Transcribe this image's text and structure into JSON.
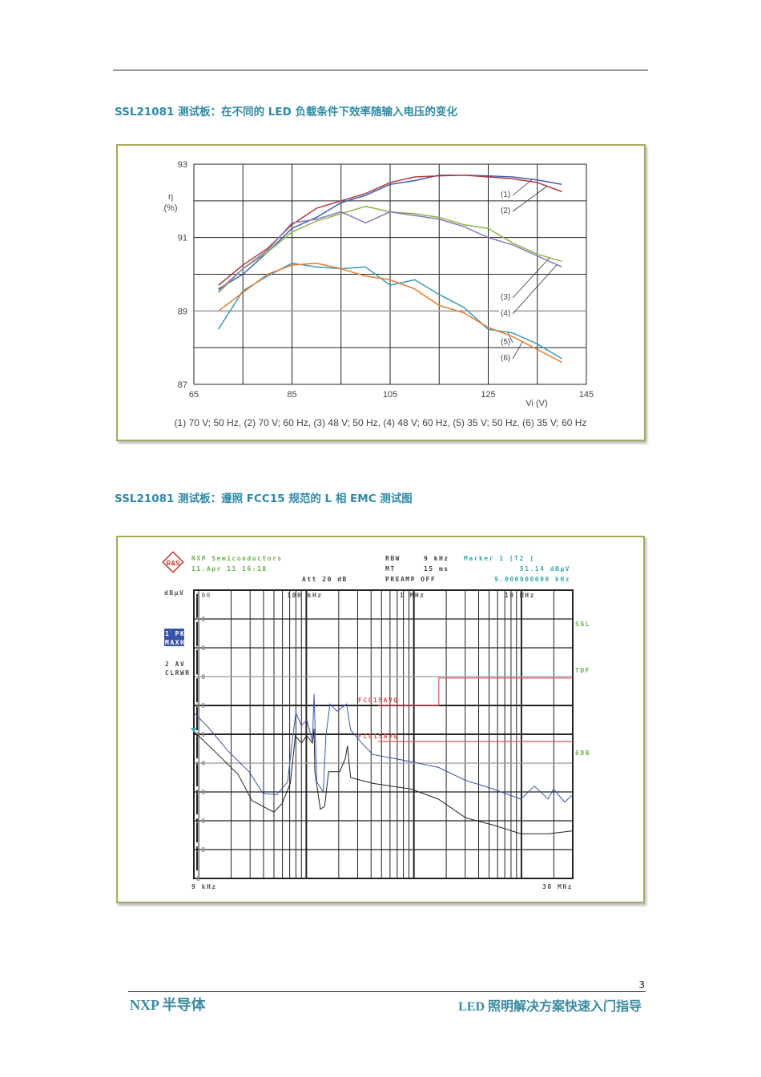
{
  "section1_title": "SSL21081 测试板：在不同的 LED 负载条件下效率随输入电压的变化",
  "section2_title": "SSL21081 测试板：遵照 FCC15 规范的 L 相 EMC 测试图",
  "footer": {
    "left": "NXP 半导体",
    "right": "LED 照明解决方案快速入门指导",
    "page_number": "3"
  },
  "chart_data": [
    {
      "type": "line",
      "ylabel_line1": "η",
      "ylabel_line2": "(%)",
      "xlabel": "Vi (V)",
      "xlim": [
        65,
        145
      ],
      "ylim": [
        87,
        93
      ],
      "xticks": [
        "65",
        "85",
        "105",
        "125",
        "145"
      ],
      "yticks": [
        "87",
        "89",
        "91",
        "93"
      ],
      "grid": true,
      "caption": "(1) 70 V; 50 Hz, (2) 70 V; 60 Hz, (3) 48 V; 50 Hz, (4) 48 V; 60 Hz, (5) 35 V; 50 Hz, (6) 35 V; 60 Hz",
      "x": [
        70,
        75,
        80,
        85,
        90,
        95,
        100,
        105,
        110,
        115,
        120,
        125,
        130,
        135,
        140
      ],
      "series": [
        {
          "name": "(1)",
          "color": "#3d5db0",
          "values": [
            89.6,
            90.0,
            90.6,
            91.25,
            91.55,
            91.95,
            92.15,
            92.45,
            92.55,
            92.7,
            92.7,
            92.68,
            92.65,
            92.57,
            92.45
          ]
        },
        {
          "name": "(2)",
          "color": "#b23a3a",
          "values": [
            89.7,
            90.25,
            90.7,
            91.35,
            91.8,
            92.0,
            92.2,
            92.5,
            92.65,
            92.68,
            92.7,
            92.65,
            92.6,
            92.5,
            92.25
          ]
        },
        {
          "name": "(3)",
          "color": "#8cb44a",
          "values": [
            89.5,
            90.15,
            90.6,
            91.15,
            91.45,
            91.65,
            91.85,
            91.7,
            91.65,
            91.55,
            91.35,
            91.25,
            90.85,
            90.55,
            90.35
          ]
        },
        {
          "name": "(4)",
          "color": "#8a78b4",
          "values": [
            89.55,
            90.15,
            90.65,
            91.4,
            91.5,
            91.7,
            91.4,
            91.7,
            91.6,
            91.5,
            91.3,
            91.0,
            90.8,
            90.5,
            90.2
          ]
        },
        {
          "name": "(5)",
          "color": "#3a9ab2",
          "values": [
            88.5,
            89.55,
            89.95,
            90.3,
            90.2,
            90.15,
            90.2,
            89.7,
            89.85,
            89.45,
            89.1,
            88.5,
            88.4,
            88.1,
            87.7
          ]
        },
        {
          "name": "(6)",
          "color": "#e47c30",
          "values": [
            89.0,
            89.5,
            90.0,
            90.25,
            90.3,
            90.15,
            89.95,
            89.85,
            89.6,
            89.15,
            88.95,
            88.55,
            88.3,
            87.95,
            87.6
          ]
        }
      ]
    },
    {
      "type": "line",
      "x_scale": "log",
      "x_unit": "kHz",
      "xlim": [
        9,
        30000
      ],
      "ylim": [
        0,
        100
      ],
      "ylabel": "dBµV",
      "yticks": [
        "0",
        "10",
        "20",
        "30",
        "40",
        "50",
        "60",
        "70",
        "80",
        "90",
        "100"
      ],
      "xtick_labels": [
        {
          "f": 100,
          "label": "100 kHz"
        },
        {
          "f": 1000,
          "label": "1 MHz"
        },
        {
          "f": 10000,
          "label": "10 MHz"
        }
      ],
      "x_start_label": "9 kHz",
      "x_end_label": "30 MHz",
      "grid": true,
      "header": {
        "company": "NXP Semiconductors",
        "date": "11.Apr 11 16:18",
        "att": "Att 20 dB",
        "rbw_label": "RBW",
        "rbw_value": "9 kHz",
        "mt_label": "MT",
        "mt_value": "15 ms",
        "preamp": "PREAMP OFF",
        "marker": "Marker 1 [T2 ]",
        "marker_level": "51.14 dBµV",
        "marker_freq": "9.000000000 kHz"
      },
      "trace_labels": {
        "t1_line1": "1 PK",
        "t1_line2": "MAXH",
        "t2_line1": "2 AV",
        "t2_line2": "CLRWR"
      },
      "side_labels": {
        "sgl": "SGL",
        "tdf": "TDF",
        "sixdb": "6DB"
      },
      "limit_lines": [
        {
          "name": "FCC15AVQ",
          "color": "#e05050",
          "points": [
            [
              465,
              60
            ],
            [
              1705,
              60
            ],
            [
              1705,
              69.5
            ],
            [
              30000,
              69.5
            ]
          ]
        },
        {
          "name": "FCC15AVQ",
          "color": "#e05050",
          "points": [
            [
              465,
              47.5
            ],
            [
              30000,
              47.5
            ]
          ]
        }
      ],
      "series": [
        {
          "name": "1 PK MAXH",
          "color": "#3d56a8",
          "points": [
            [
              9,
              57.5
            ],
            [
              12.2,
              52.5
            ],
            [
              18.4,
              44.5
            ],
            [
              29.4,
              37
            ],
            [
              39.5,
              29.5
            ],
            [
              53,
              29
            ],
            [
              67,
              33.5
            ],
            [
              75,
              49.5
            ],
            [
              80,
              57.5
            ],
            [
              90,
              53
            ],
            [
              101,
              55
            ],
            [
              114,
              47.5
            ],
            [
              118,
              64
            ],
            [
              125,
              33.5
            ],
            [
              144,
              30
            ],
            [
              152,
              49.5
            ],
            [
              166,
              60.5
            ],
            [
              193,
              58
            ],
            [
              237,
              60.5
            ],
            [
              258,
              51.5
            ],
            [
              327,
              47
            ],
            [
              413,
              43
            ],
            [
              940,
              40.5
            ],
            [
              1690,
              38.5
            ],
            [
              3040,
              34
            ],
            [
              5470,
              31
            ],
            [
              9850,
              27.5
            ],
            [
              13200,
              32
            ],
            [
              17700,
              27.5
            ],
            [
              19900,
              31
            ],
            [
              25200,
              26.5
            ],
            [
              30000,
              29
            ]
          ]
        },
        {
          "name": "2 AV CLRWR",
          "color": "#222222",
          "points": [
            [
              9,
              51
            ],
            [
              13.7,
              44.5
            ],
            [
              23.3,
              36
            ],
            [
              31.2,
              27
            ],
            [
              50,
              23
            ],
            [
              59.6,
              26
            ],
            [
              71,
              33
            ],
            [
              79,
              49.5
            ],
            [
              90,
              47
            ],
            [
              101,
              49.5
            ],
            [
              114,
              47
            ],
            [
              118,
              52
            ],
            [
              120,
              37
            ],
            [
              135,
              24
            ],
            [
              148,
              25
            ],
            [
              161,
              37
            ],
            [
              204,
              37
            ],
            [
              230,
              41.5
            ],
            [
              241,
              46
            ],
            [
              258,
              35
            ],
            [
              413,
              33
            ],
            [
              940,
              31
            ],
            [
              1690,
              27.5
            ],
            [
              3040,
              21
            ],
            [
              5470,
              18.5
            ],
            [
              9850,
              15.5
            ],
            [
              17700,
              15.5
            ],
            [
              30000,
              16.5
            ]
          ]
        }
      ]
    }
  ]
}
